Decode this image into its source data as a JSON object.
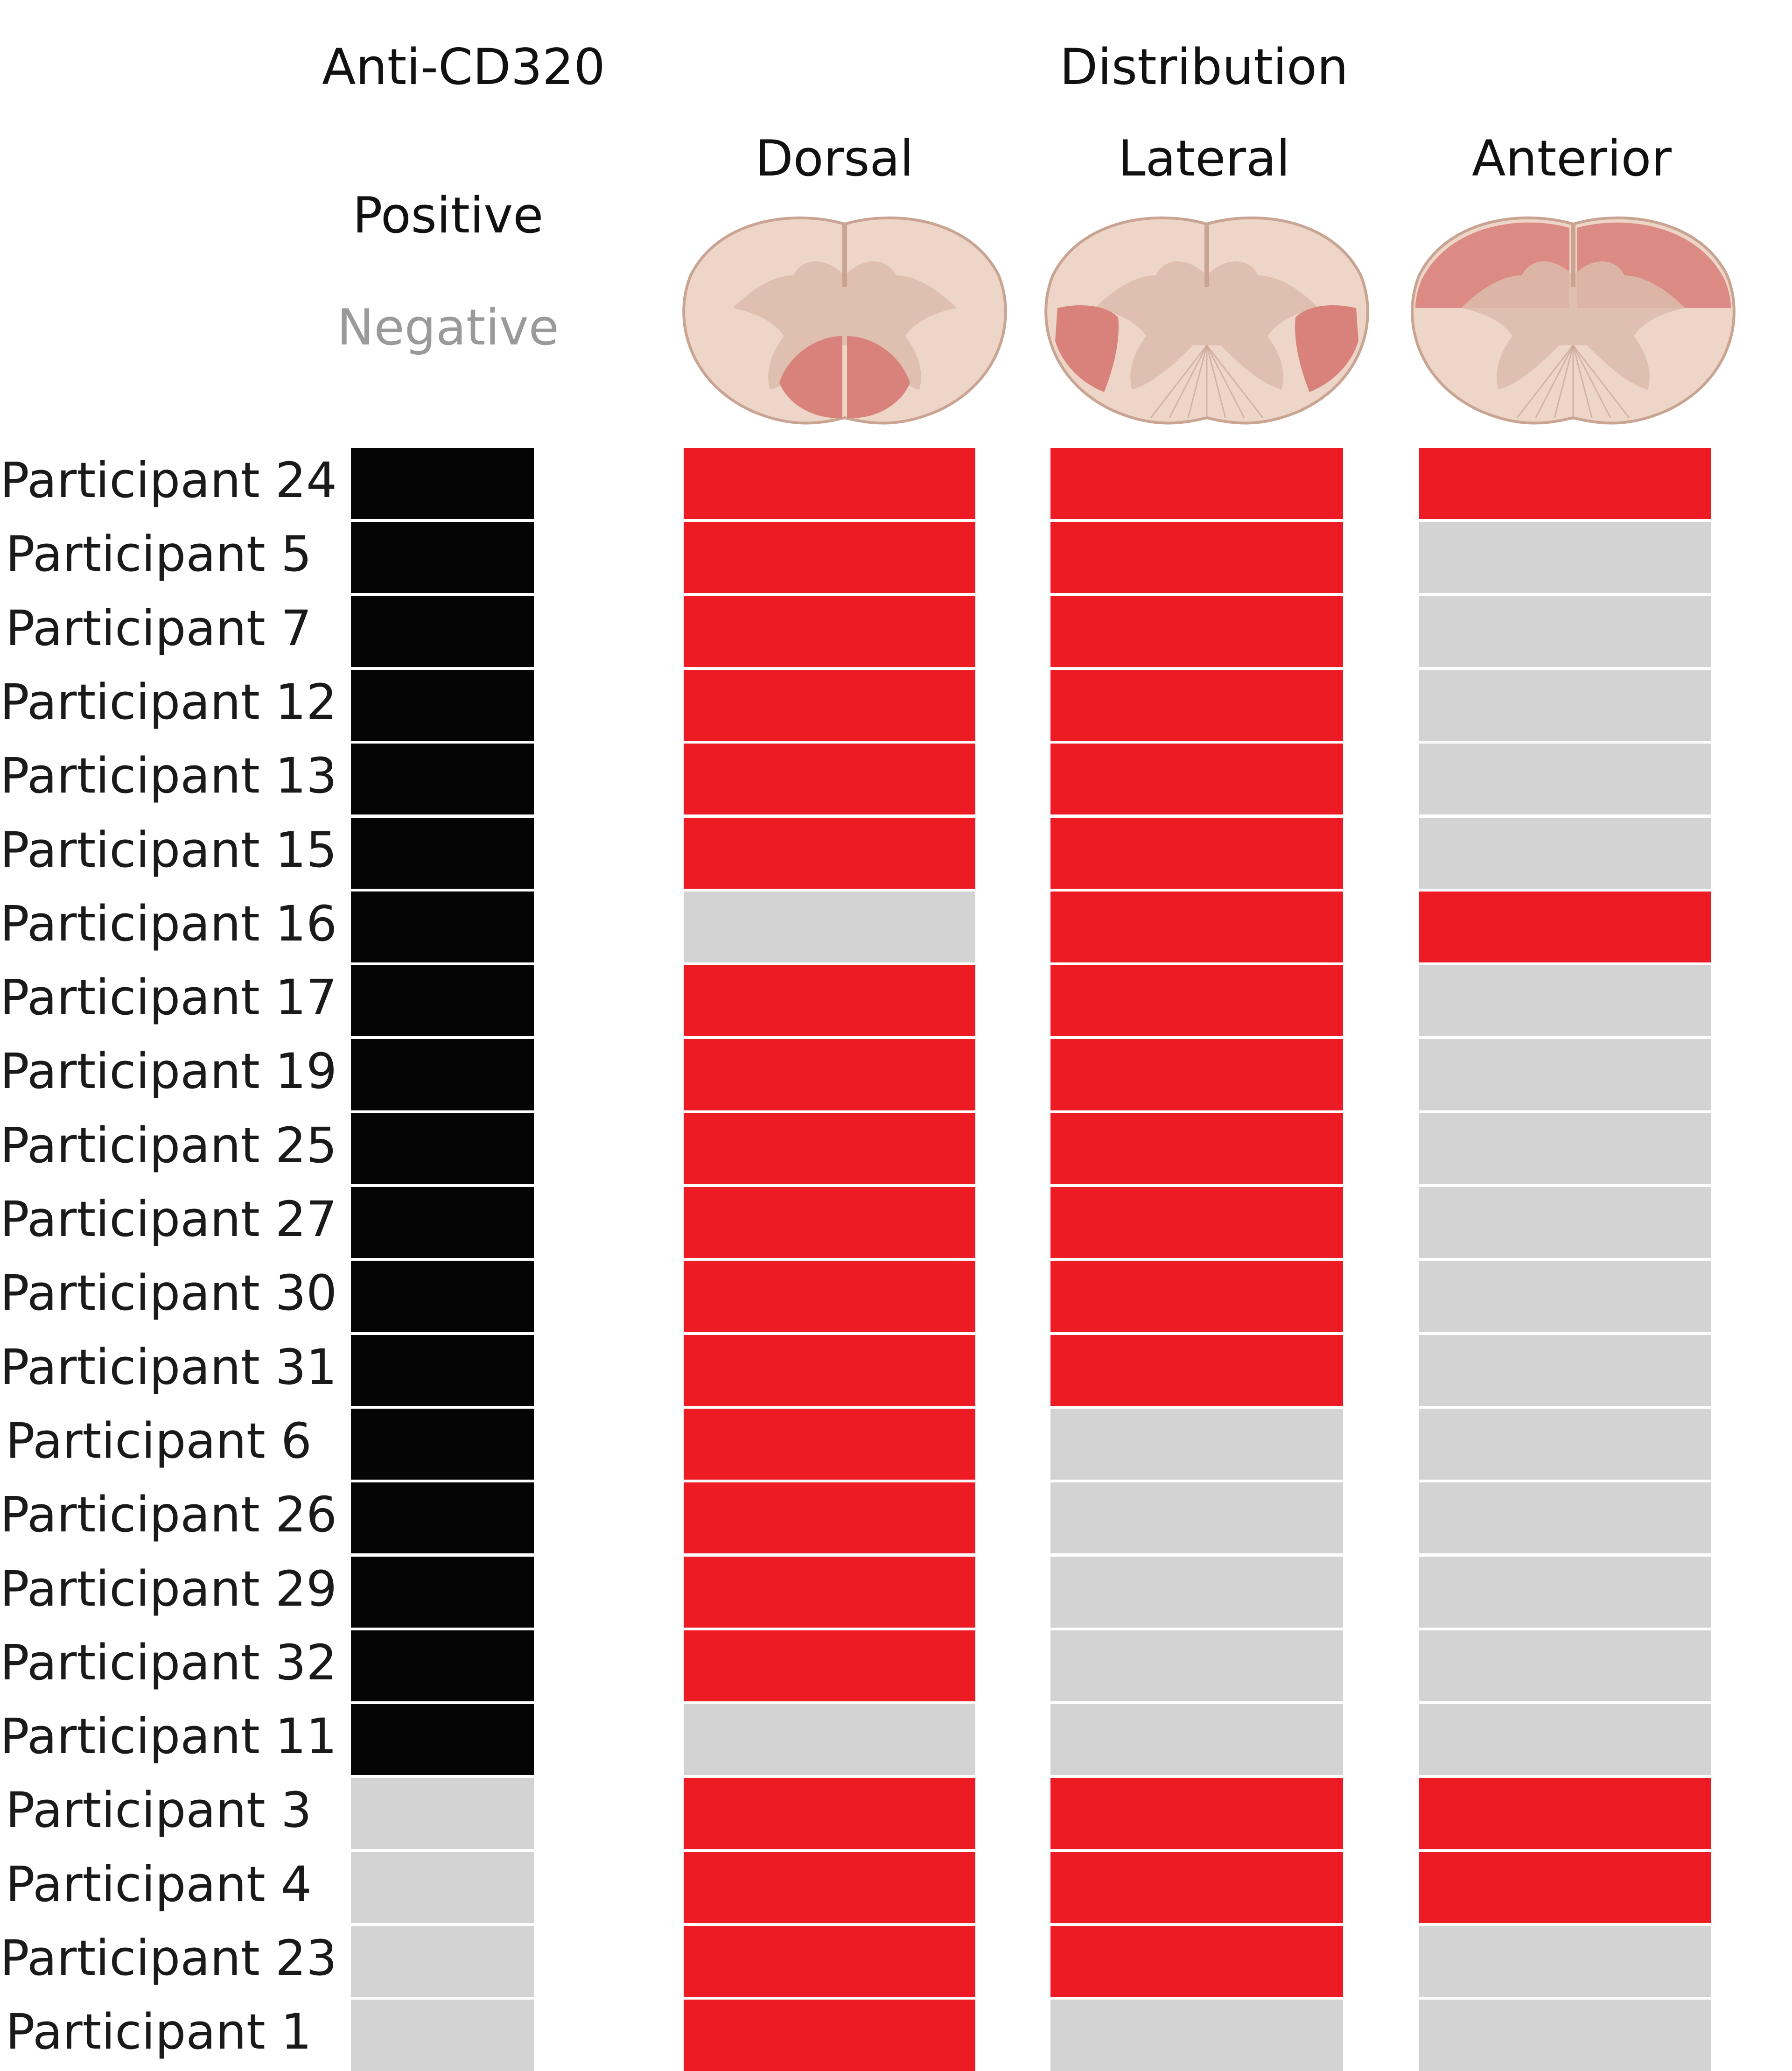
{
  "headers": {
    "anti_title": "Anti-CD320",
    "distribution_title": "Distribution",
    "legend_positive": "Positive",
    "legend_negative": "Negative",
    "col_dorsal": "Dorsal",
    "col_lateral": "Lateral",
    "col_anterior": "Anterior"
  },
  "colors": {
    "positive": "#050505",
    "involved": "#ed1c24",
    "absent": "#d3d3d3",
    "cord_fill": "#edd5c8",
    "cord_gray": "#dcbcac",
    "cord_highlight": "#d9827c",
    "cord_outline": "#c9a493"
  },
  "chart_data": {
    "type": "heatmap",
    "columns": [
      "Anti-CD320",
      "Dorsal",
      "Lateral",
      "Anterior"
    ],
    "rows": [
      {
        "label": "Participant 24",
        "anti": "Positive",
        "dorsal": 1,
        "lateral": 1,
        "anterior": 1
      },
      {
        "label": "Participant 5",
        "anti": "Positive",
        "dorsal": 1,
        "lateral": 1,
        "anterior": 0
      },
      {
        "label": "Participant 7",
        "anti": "Positive",
        "dorsal": 1,
        "lateral": 1,
        "anterior": 0
      },
      {
        "label": "Participant 12",
        "anti": "Positive",
        "dorsal": 1,
        "lateral": 1,
        "anterior": 0
      },
      {
        "label": "Participant 13",
        "anti": "Positive",
        "dorsal": 1,
        "lateral": 1,
        "anterior": 0
      },
      {
        "label": "Participant 15",
        "anti": "Positive",
        "dorsal": 1,
        "lateral": 1,
        "anterior": 0
      },
      {
        "label": "Participant 16",
        "anti": "Positive",
        "dorsal": 0,
        "lateral": 1,
        "anterior": 1
      },
      {
        "label": "Participant 17",
        "anti": "Positive",
        "dorsal": 1,
        "lateral": 1,
        "anterior": 0
      },
      {
        "label": "Participant 19",
        "anti": "Positive",
        "dorsal": 1,
        "lateral": 1,
        "anterior": 0
      },
      {
        "label": "Participant 25",
        "anti": "Positive",
        "dorsal": 1,
        "lateral": 1,
        "anterior": 0
      },
      {
        "label": "Participant 27",
        "anti": "Positive",
        "dorsal": 1,
        "lateral": 1,
        "anterior": 0
      },
      {
        "label": "Participant 30",
        "anti": "Positive",
        "dorsal": 1,
        "lateral": 1,
        "anterior": 0
      },
      {
        "label": "Participant 31",
        "anti": "Positive",
        "dorsal": 1,
        "lateral": 1,
        "anterior": 0
      },
      {
        "label": "Participant 6",
        "anti": "Positive",
        "dorsal": 1,
        "lateral": 0,
        "anterior": 0
      },
      {
        "label": "Participant 26",
        "anti": "Positive",
        "dorsal": 1,
        "lateral": 0,
        "anterior": 0
      },
      {
        "label": "Participant 29",
        "anti": "Positive",
        "dorsal": 1,
        "lateral": 0,
        "anterior": 0
      },
      {
        "label": "Participant 32",
        "anti": "Positive",
        "dorsal": 1,
        "lateral": 0,
        "anterior": 0
      },
      {
        "label": "Participant 11",
        "anti": "Positive",
        "dorsal": 0,
        "lateral": 0,
        "anterior": 0
      },
      {
        "label": "Participant 3",
        "anti": "Negative",
        "dorsal": 1,
        "lateral": 1,
        "anterior": 1
      },
      {
        "label": "Participant 4",
        "anti": "Negative",
        "dorsal": 1,
        "lateral": 1,
        "anterior": 1
      },
      {
        "label": "Participant 23",
        "anti": "Negative",
        "dorsal": 1,
        "lateral": 1,
        "anterior": 0
      },
      {
        "label": "Participant 1",
        "anti": "Negative",
        "dorsal": 1,
        "lateral": 0,
        "anterior": 0
      }
    ],
    "legend": {
      "Positive": "black",
      "Negative": "gray"
    }
  }
}
